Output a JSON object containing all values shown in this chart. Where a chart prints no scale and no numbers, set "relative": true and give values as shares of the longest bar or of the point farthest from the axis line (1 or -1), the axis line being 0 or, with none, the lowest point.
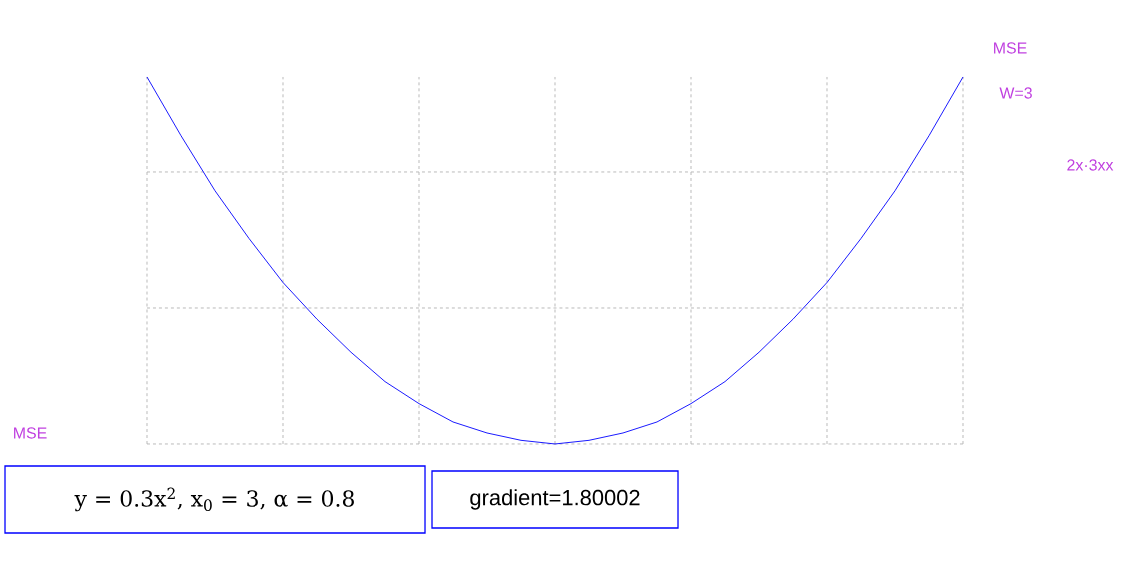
{
  "chart_data": {
    "type": "line",
    "relative": true,
    "categories": [
      null,
      null,
      null,
      null,
      null,
      null,
      null,
      null,
      null,
      null,
      null,
      null,
      null,
      null,
      null,
      null,
      null,
      null,
      null,
      null,
      null,
      null,
      null,
      null,
      null
    ],
    "series": [
      {
        "color": "#0000ff",
        "values": [
          1,
          0.84,
          0.69,
          0.56,
          0.44,
          0.34,
          0.25,
          0.17,
          0.11,
          0.06,
          0.03,
          0.01,
          0,
          0.01,
          0.03,
          0.06,
          0.11,
          0.17,
          0.25,
          0.34,
          0.44,
          0.56,
          0.69,
          0.84,
          1
        ]
      }
    ],
    "grid": true,
    "marker": "none",
    "line_style": "solid",
    "annotations": [
      "y = 0.3x$^{2}$, x$_{0}$ = 3, α = 0.8",
      "gradient=1.80002",
      "MSE",
      "W=3",
      "2x·3xx",
      "MSE"
    ]
  }
}
